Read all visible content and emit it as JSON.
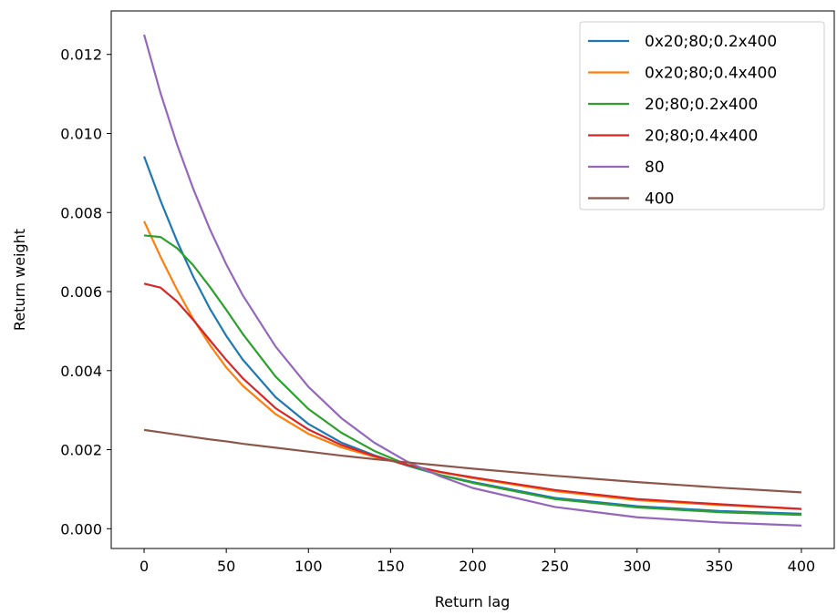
{
  "chart_data": {
    "type": "line",
    "title": "",
    "xlabel": "Return lag",
    "ylabel": "Return weight",
    "xlim": [
      -20,
      420
    ],
    "ylim": [
      -0.0005,
      0.0131
    ],
    "xticks": [
      0,
      50,
      100,
      150,
      200,
      250,
      300,
      350,
      400
    ],
    "xtick_labels": [
      "0",
      "50",
      "100",
      "150",
      "200",
      "250",
      "300",
      "350",
      "400"
    ],
    "yticks": [
      0.0,
      0.002,
      0.004,
      0.006,
      0.008,
      0.01,
      0.012
    ],
    "ytick_labels": [
      "0.000",
      "0.002",
      "0.004",
      "0.006",
      "0.008",
      "0.010",
      "0.012"
    ],
    "grid": false,
    "legend_position": "top-right",
    "x": [
      0,
      10,
      20,
      30,
      40,
      50,
      60,
      80,
      100,
      120,
      140,
      160,
      180,
      200,
      250,
      300,
      350,
      400
    ],
    "series": [
      {
        "name": "0x20;80;0.2x400",
        "color": "#1f77b4",
        "values": [
          0.00942,
          0.0083,
          0.00728,
          0.00637,
          0.00557,
          0.00488,
          0.00428,
          0.00333,
          0.00265,
          0.00218,
          0.00186,
          0.0016,
          0.00136,
          0.00118,
          0.00078,
          0.00057,
          0.00045,
          0.00038
        ]
      },
      {
        "name": "0x20;80;0.4x400",
        "color": "#ff7f0e",
        "values": [
          0.00778,
          0.00688,
          0.00605,
          0.0053,
          0.00465,
          0.00408,
          0.00362,
          0.0029,
          0.0024,
          0.00206,
          0.00182,
          0.00162,
          0.00143,
          0.00128,
          0.00095,
          0.00072,
          0.0006,
          0.0005
        ]
      },
      {
        "name": "20;80;0.2x400",
        "color": "#2ca02c",
        "values": [
          0.00742,
          0.00738,
          0.0071,
          0.00666,
          0.00612,
          0.00554,
          0.00493,
          0.00385,
          0.00303,
          0.00243,
          0.00197,
          0.00162,
          0.00136,
          0.00116,
          0.00075,
          0.00054,
          0.00042,
          0.00035
        ]
      },
      {
        "name": "20;80;0.4x400",
        "color": "#d62728",
        "values": [
          0.0062,
          0.0061,
          0.00575,
          0.00528,
          0.00477,
          0.00427,
          0.00381,
          0.00305,
          0.00251,
          0.00212,
          0.00184,
          0.00162,
          0.00144,
          0.0013,
          0.00098,
          0.00075,
          0.00062,
          0.0005
        ]
      },
      {
        "name": "80",
        "color": "#9467bd",
        "values": [
          0.0125,
          0.01102,
          0.00973,
          0.00859,
          0.00758,
          0.00669,
          0.00591,
          0.00461,
          0.00359,
          0.0028,
          0.00218,
          0.0017,
          0.00133,
          0.00103,
          0.00055,
          0.00029,
          0.00016,
          8e-05
        ]
      },
      {
        "name": "400",
        "color": "#8c564b",
        "values": [
          0.0025,
          0.00244,
          0.00238,
          0.00232,
          0.00226,
          0.00221,
          0.00215,
          0.00205,
          0.00195,
          0.00185,
          0.00176,
          0.00168,
          0.0016,
          0.00152,
          0.00134,
          0.00118,
          0.00104,
          0.00092
        ]
      }
    ]
  }
}
